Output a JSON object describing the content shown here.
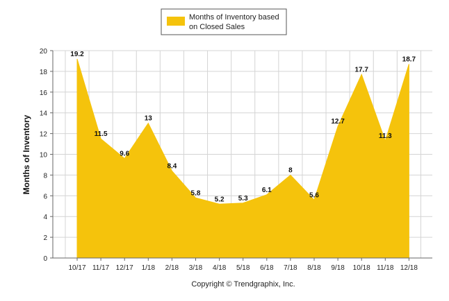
{
  "chart_data": {
    "type": "area",
    "categories": [
      "10/17",
      "11/17",
      "12/17",
      "1/18",
      "2/18",
      "3/18",
      "4/18",
      "5/18",
      "6/18",
      "7/18",
      "8/18",
      "9/18",
      "10/18",
      "11/18",
      "12/18"
    ],
    "series": [
      {
        "name": "Months of Inventory based on Closed Sales",
        "values": [
          19.2,
          11.5,
          9.6,
          13,
          8.4,
          5.8,
          5.2,
          5.3,
          6.1,
          8,
          5.6,
          12.7,
          17.7,
          11.3,
          18.7
        ],
        "color": "#F5C30C"
      }
    ],
    "data_labels": [
      "19.2",
      "11.5",
      "9.6",
      "13",
      "8.4",
      "5.8",
      "5.2",
      "5.3",
      "6.1",
      "8",
      "5.6",
      "12.7",
      "17.7",
      "11.3",
      "18.7"
    ],
    "ylabel": "Months of Inventory",
    "xlabel": "",
    "ylim": [
      0,
      20
    ],
    "yticks": [
      0,
      2,
      4,
      6,
      8,
      10,
      12,
      14,
      16,
      18,
      20
    ],
    "grid": true,
    "legend_position": "top-center"
  },
  "legend": {
    "line1": "Months of Inventory based",
    "line2": "on Closed Sales"
  },
  "footer": {
    "copyright": "Copyright © Trendgraphix, Inc."
  }
}
